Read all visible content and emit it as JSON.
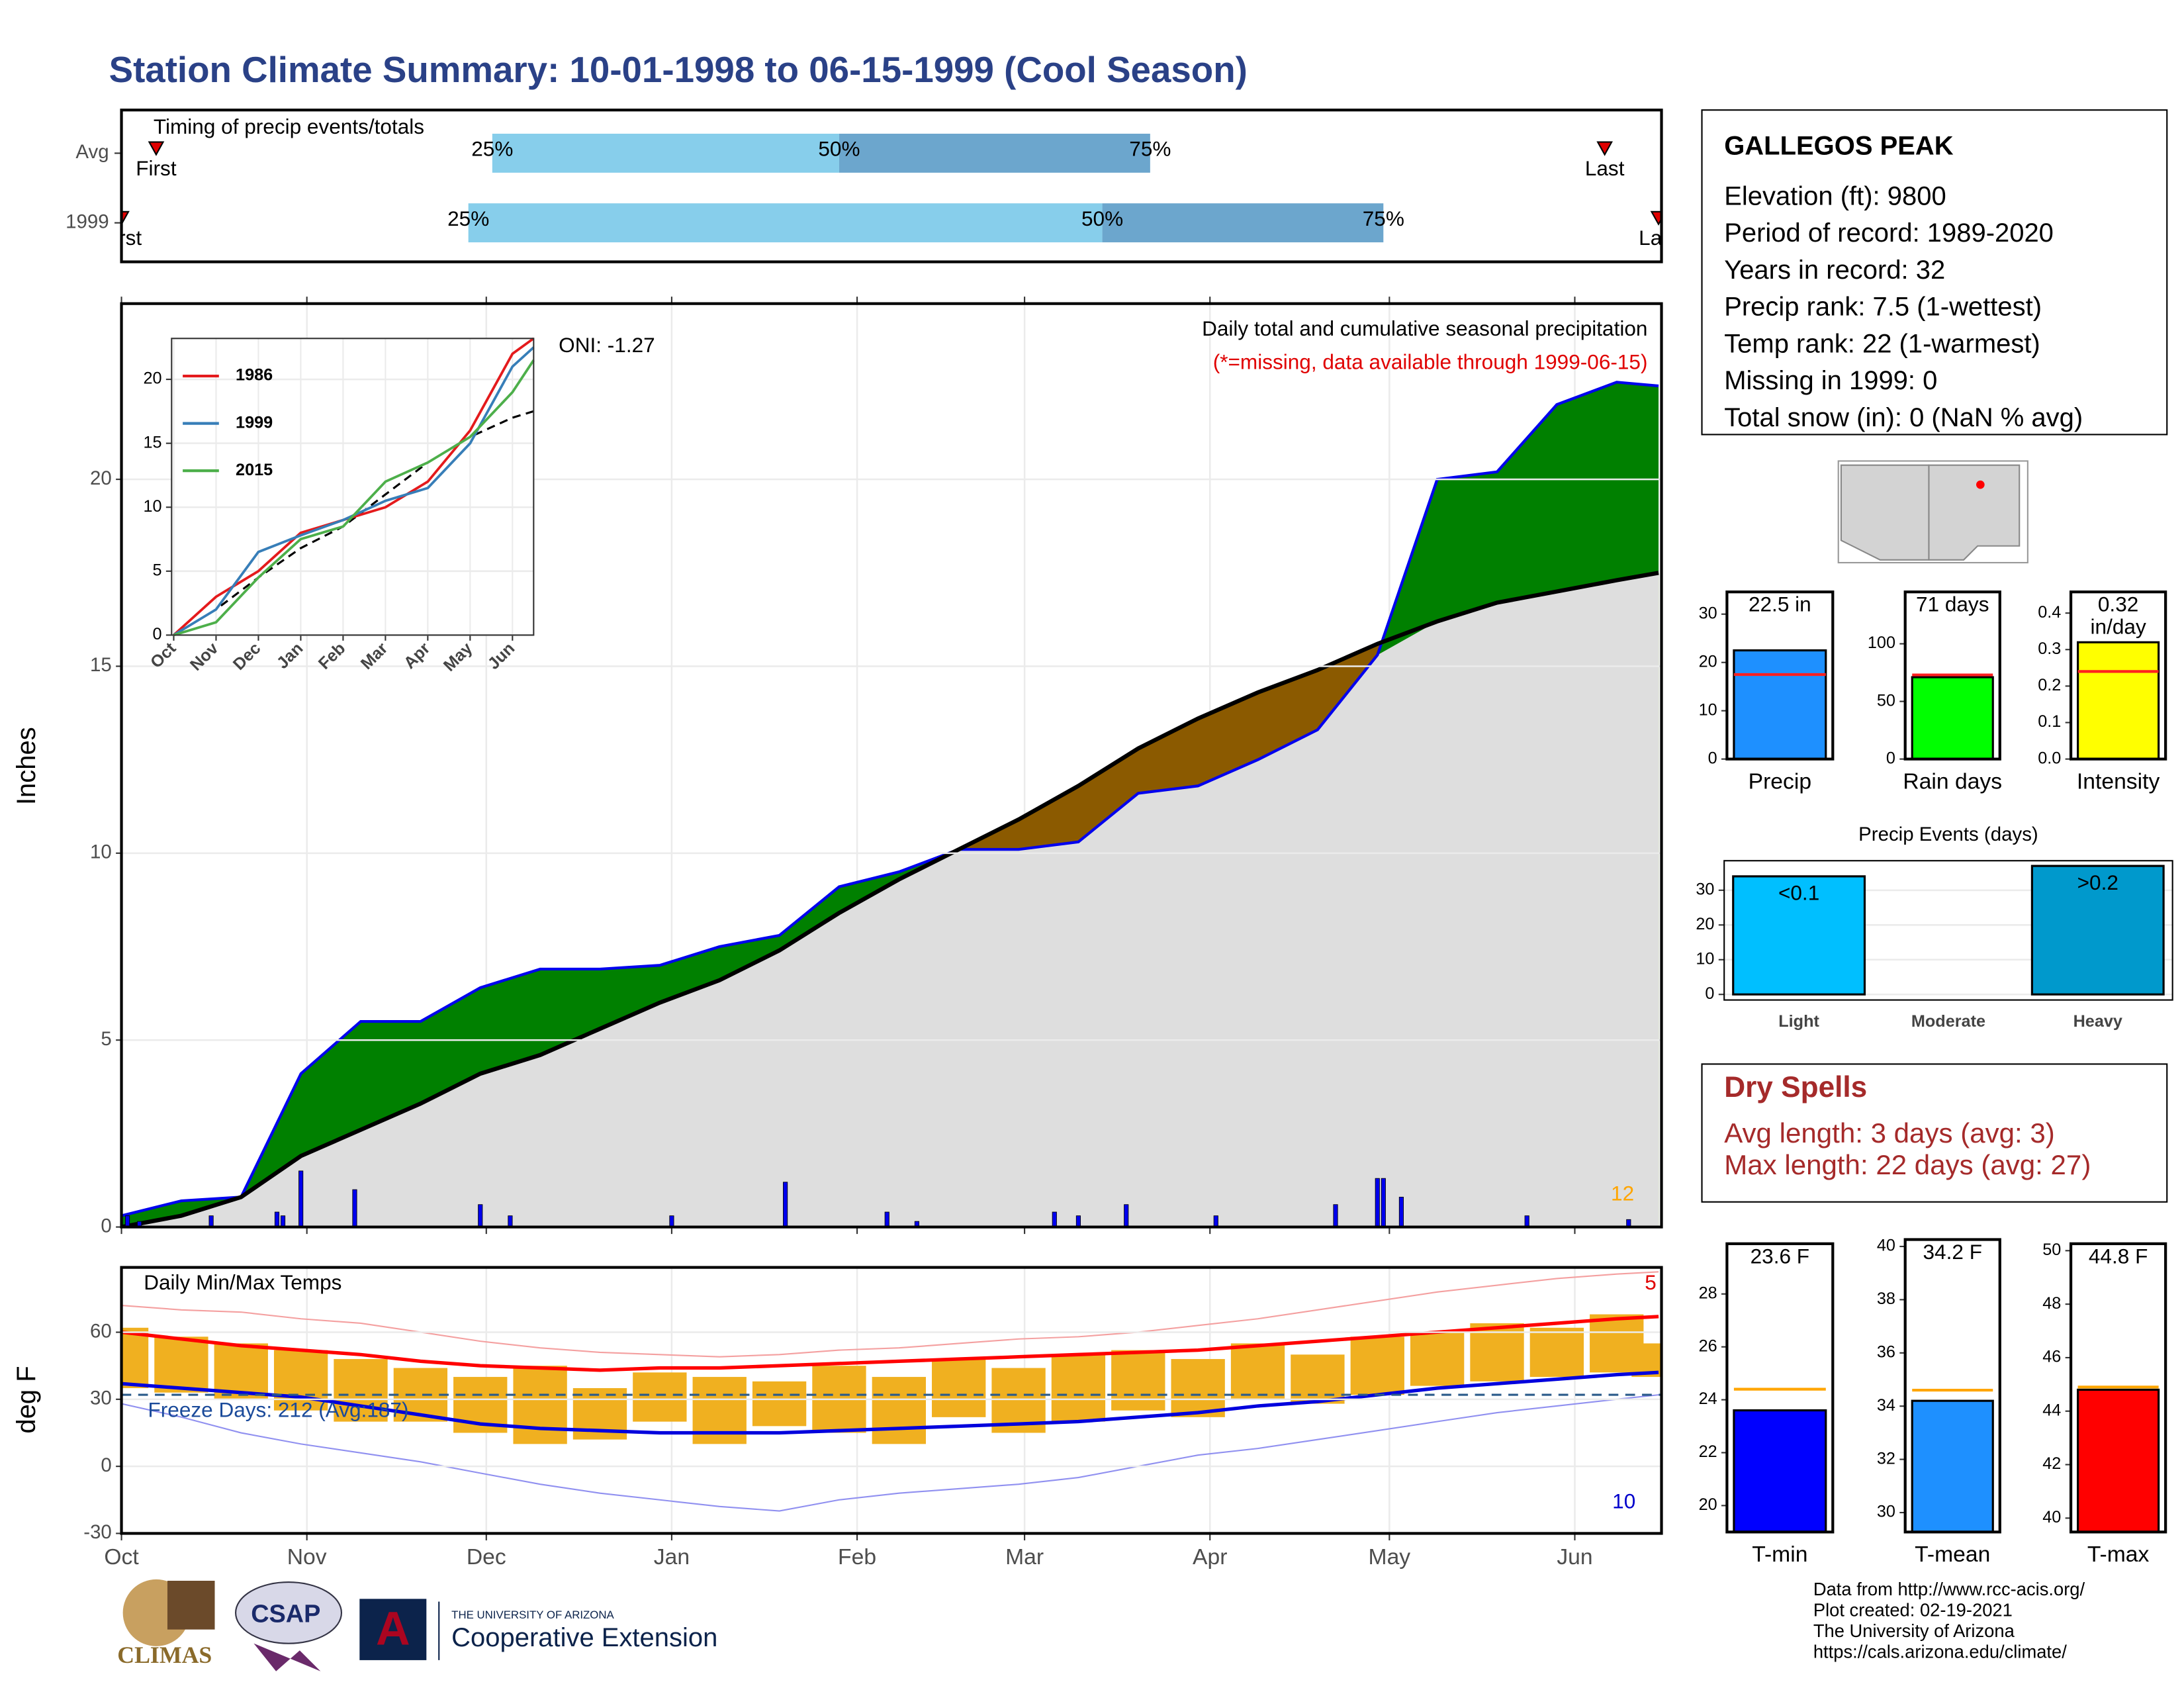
{
  "title": "Station Climate Summary: 10-01-1998 to 06-15-1999 (Cool Season)",
  "station": {
    "name": "GALLEGOS PEAK",
    "lines": [
      "Elevation (ft): 9800",
      "Period of record: 1989-2020",
      "Years in record: 32",
      "Precip rank: 7.5 (1-wettest)",
      "Temp rank: 22 (1-warmest)",
      "Missing in 1999: 0",
      "Total snow (in): 0 (NaN % avg)"
    ]
  },
  "dry_spells": {
    "title": "Dry Spells",
    "lines": [
      "Avg length: 3 days (avg: 3)",
      "Max length: 22 days (avg: 27)"
    ]
  },
  "footer": [
    "Data from http://www.rcc-acis.org/",
    "Plot created: 02-19-2021",
    "The University of Arizona",
    "https://cals.arizona.edu/climate/"
  ],
  "logos": {
    "climas": "CLIMAS",
    "csap": "CSAP",
    "ua_small": "THE UNIVERSITY OF ARIZONA",
    "coop": "Cooperative Extension"
  },
  "chart_data": [
    {
      "type": "timeline",
      "label": "Timing of precip events/totals",
      "xlim": [
        0,
        257.5
      ],
      "marker_labels": {
        "first": "First",
        "last": "Last"
      },
      "pct_labels": [
        "25%",
        "50%",
        "75%"
      ],
      "colors": [
        "#87ceeb",
        "#6ca6cd"
      ],
      "marker_color": "#e00000",
      "rows": [
        {
          "name": "Avg",
          "first": 5.8,
          "p25": 62,
          "p50": 120,
          "p75": 172,
          "last": 248
        },
        {
          "name": "1999",
          "first": 0,
          "p25": 58,
          "p50": 164,
          "p75": 211,
          "last": 257
        }
      ]
    },
    {
      "type": "area",
      "ylabel": "Inches",
      "xlim": [
        0,
        257.5
      ],
      "ylim": [
        0,
        24.7
      ],
      "yticks": [
        0,
        5,
        10,
        15,
        20
      ],
      "xticks": [
        0,
        31,
        61,
        92,
        123,
        151,
        182,
        212,
        243
      ],
      "grid": true,
      "annotations": {
        "oni": "ONI: -1.27",
        "desc": "Daily total and cumulative seasonal precipitation",
        "missing": "(*=missing, data available through 1999-06-15)",
        "count": "12"
      },
      "above_color": "#008000",
      "below_color": "#8b5a00",
      "base_color": "#dedede",
      "x": [
        0,
        10,
        20,
        30,
        40,
        50,
        60,
        70,
        80,
        90,
        100,
        110,
        120,
        130,
        140,
        150,
        160,
        170,
        180,
        190,
        200,
        210,
        220,
        230,
        240,
        250,
        257
      ],
      "series": [
        {
          "color": "#0000ee",
          "values": [
            0.3,
            0.7,
            0.8,
            4.1,
            5.5,
            5.5,
            6.4,
            6.9,
            6.9,
            7.0,
            7.5,
            7.8,
            9.1,
            9.5,
            10.1,
            10.1,
            10.3,
            11.6,
            11.8,
            12.5,
            13.3,
            15.3,
            20.0,
            20.2,
            22.0,
            22.6,
            22.5
          ]
        },
        {
          "color": "#000000",
          "values": [
            0,
            0.3,
            0.8,
            1.9,
            2.6,
            3.3,
            4.1,
            4.6,
            5.3,
            6.0,
            6.6,
            7.4,
            8.4,
            9.3,
            10.1,
            10.9,
            11.8,
            12.8,
            13.6,
            14.3,
            14.9,
            15.6,
            16.2,
            16.7,
            17.0,
            17.3,
            17.5
          ]
        }
      ],
      "daily_color": "#0000ee",
      "daily_x": [
        1,
        3,
        15,
        26,
        27,
        30,
        39,
        60,
        65,
        92,
        111,
        128,
        133,
        156,
        160,
        168,
        183,
        203,
        210,
        211,
        214,
        235,
        252
      ],
      "daily_values": [
        0.3,
        0.15,
        0.3,
        0.4,
        0.3,
        1.5,
        1.0,
        0.6,
        0.3,
        0.3,
        1.2,
        0.4,
        0.15,
        0.4,
        0.3,
        0.6,
        0.3,
        0.6,
        1.3,
        1.3,
        0.8,
        0.3,
        0.2
      ]
    },
    {
      "type": "line",
      "xlim": [
        -0.05,
        8.5
      ],
      "ylim": [
        0,
        23.2
      ],
      "yticks": [
        0,
        5,
        10,
        15,
        20
      ],
      "xticks": [
        {
          "value": 0,
          "label": "Oct"
        },
        {
          "value": 1,
          "label": "Nov"
        },
        {
          "value": 2,
          "label": "Dec"
        },
        {
          "value": 3,
          "label": "Jan"
        },
        {
          "value": 4,
          "label": "Feb"
        },
        {
          "value": 5,
          "label": "Mar"
        },
        {
          "value": 6,
          "label": "Apr"
        },
        {
          "value": 7,
          "label": "May"
        },
        {
          "value": 8,
          "label": "Jun"
        }
      ],
      "x": [
        0,
        1,
        2,
        3,
        4,
        5,
        6,
        7,
        8,
        8.5
      ],
      "series": [
        {
          "name": "1986",
          "color": "#e41a1c",
          "values": [
            0,
            3,
            5,
            8,
            9,
            10,
            12,
            16,
            22,
            23.2
          ]
        },
        {
          "name": "1999",
          "color": "#377eb8",
          "values": [
            0,
            2,
            6.5,
            7.8,
            9,
            10.5,
            11.5,
            15,
            21,
            22.5
          ]
        },
        {
          "name": "2015",
          "color": "#4daf4a",
          "values": [
            0,
            1,
            4.5,
            7.5,
            8.5,
            12,
            13.5,
            15.5,
            19,
            21.5
          ]
        }
      ],
      "avg": [
        0,
        2,
        4.5,
        6.8,
        8.5,
        11,
        13.5,
        15.5,
        17,
        17.5
      ]
    },
    {
      "type": "range",
      "title": "Daily Min/Max Temps",
      "ylabel": "deg F",
      "xlim": [
        0,
        257.5
      ],
      "ylim": [
        -30,
        89
      ],
      "yticks": [
        -30,
        0,
        30,
        60
      ],
      "xticks": [
        {
          "value": 0,
          "label": "Oct"
        },
        {
          "value": 31,
          "label": "Nov"
        },
        {
          "value": 61,
          "label": "Dec"
        },
        {
          "value": 92,
          "label": "Jan"
        },
        {
          "value": 123,
          "label": "Feb"
        },
        {
          "value": 151,
          "label": "Mar"
        },
        {
          "value": 182,
          "label": "Apr"
        },
        {
          "value": 212,
          "label": "May"
        },
        {
          "value": 243,
          "label": "Jun"
        }
      ],
      "grid": true,
      "freeze_line": 32,
      "freeze_label": "Freeze Days: 212 (Avg:187)",
      "annotations": {
        "high_count": "5",
        "low_count": "10"
      },
      "x": [
        0,
        10,
        20,
        30,
        40,
        50,
        60,
        70,
        80,
        90,
        100,
        110,
        120,
        130,
        140,
        150,
        160,
        170,
        180,
        190,
        200,
        210,
        220,
        230,
        240,
        250,
        257
      ],
      "range_color": "#f0b020",
      "obs_max": [
        62,
        58,
        55,
        52,
        48,
        44,
        40,
        45,
        35,
        42,
        40,
        38,
        45,
        40,
        48,
        44,
        50,
        52,
        48,
        55,
        50,
        58,
        60,
        64,
        62,
        68,
        55
      ],
      "obs_min": [
        35,
        33,
        30,
        25,
        20,
        20,
        15,
        10,
        12,
        20,
        10,
        18,
        15,
        10,
        22,
        15,
        20,
        25,
        22,
        30,
        28,
        32,
        36,
        38,
        40,
        42,
        40
      ],
      "series": [
        {
          "color": "#f4a0a0",
          "width": 1,
          "values": [
            72,
            70,
            69,
            66,
            64,
            60,
            56,
            53,
            51,
            50,
            49,
            50,
            52,
            53,
            55,
            57,
            58,
            60,
            63,
            66,
            70,
            74,
            78,
            81,
            84,
            86,
            87
          ]
        },
        {
          "color": "#9090f0",
          "width": 1,
          "values": [
            28,
            22,
            15,
            10,
            6,
            2,
            -3,
            -8,
            -12,
            -15,
            -18,
            -20,
            -15,
            -12,
            -10,
            -8,
            -5,
            0,
            5,
            8,
            12,
            16,
            20,
            24,
            27,
            30,
            32
          ]
        },
        {
          "color": "#ff0000",
          "width": 2.5,
          "values": [
            60,
            57,
            54,
            52,
            50,
            47,
            45,
            44,
            43,
            44,
            44,
            45,
            46,
            47,
            48,
            49,
            50,
            51,
            52,
            54,
            56,
            58,
            60,
            62,
            64,
            66,
            67
          ]
        },
        {
          "color": "#0000dd",
          "width": 2.5,
          "values": [
            37,
            35,
            33,
            31,
            27,
            23,
            19,
            17,
            16,
            15,
            15,
            15,
            16,
            17,
            18,
            19,
            20,
            22,
            24,
            27,
            29,
            32,
            35,
            37,
            39,
            41,
            42
          ]
        }
      ]
    },
    {
      "type": "single",
      "categories": [
        "Precip"
      ],
      "values": [
        22.5
      ],
      "value_labels": [
        "22.5 in"
      ],
      "avg": 17.5,
      "color": "#1e90ff",
      "ylim": [
        0,
        34.6
      ],
      "yticks": [
        0,
        10,
        20,
        30
      ]
    },
    {
      "type": "single",
      "categories": [
        "Rain days"
      ],
      "values": [
        71
      ],
      "value_labels": [
        "71 days"
      ],
      "avg": 73,
      "color": "#00ff00",
      "ylim": [
        0,
        145
      ],
      "yticks": [
        0,
        50,
        100
      ]
    },
    {
      "type": "single",
      "categories": [
        "Intensity"
      ],
      "values": [
        0.32
      ],
      "value_labels": [
        "0.32 in/day"
      ],
      "avg": 0.24,
      "color": "#ffff00",
      "ylim": [
        0,
        0.458
      ],
      "yticks": [
        {
          "value": 0,
          "label": "0.0"
        },
        0.1,
        0.2,
        0.3,
        0.4
      ]
    },
    {
      "type": "bar",
      "title": "Precip Events (days)",
      "categories": [
        "Light",
        "Moderate",
        "Heavy"
      ],
      "values": [
        34,
        0,
        37
      ],
      "bar_labels": [
        "<0.1",
        null,
        ">0.2"
      ],
      "colors": [
        "#00bfff",
        "#888888",
        "#0099cc"
      ],
      "ylim": [
        0,
        38.5
      ],
      "yticks": [
        0,
        10,
        20,
        30
      ],
      "grid": true
    },
    {
      "type": "single",
      "categories": [
        "T-min"
      ],
      "values": [
        23.6
      ],
      "value_labels": [
        "23.6 F"
      ],
      "avg": 24.4,
      "avg_color": "#ffa500",
      "color": "#0000ff",
      "ylim": [
        19,
        29.9
      ],
      "yticks": [
        20,
        22,
        24,
        26,
        28
      ]
    },
    {
      "type": "single",
      "categories": [
        "T-mean"
      ],
      "values": [
        34.2
      ],
      "value_labels": [
        "34.2 F"
      ],
      "avg": 34.6,
      "avg_color": "#ffa500",
      "color": "#1e90ff",
      "ylim": [
        29.27,
        40.26
      ],
      "yticks": [
        30,
        32,
        34,
        36,
        38,
        40
      ]
    },
    {
      "type": "single",
      "categories": [
        "T-max"
      ],
      "values": [
        44.8
      ],
      "value_labels": [
        "44.8 F"
      ],
      "avg": 44.9,
      "avg_color": "#ffa500",
      "color": "#ff0000",
      "ylim": [
        39.48,
        50.26
      ],
      "yticks": [
        40,
        42,
        44,
        46,
        48,
        50
      ]
    }
  ]
}
